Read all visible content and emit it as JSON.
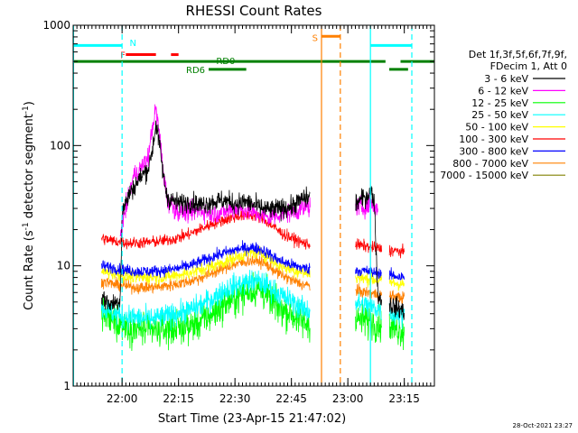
{
  "chart_data": {
    "type": "line",
    "title": "RHESSI Count Rates",
    "xlabel": "Start Time (23-Apr-15 21:47:02)",
    "ylabel_main": "Count Rate (s",
    "ylabel_sup1": "-1",
    "ylabel_mid": " detector segment",
    "ylabel_sup2": "-1",
    "ylabel_end": ")",
    "y_scale": "log",
    "ylim": [
      1,
      1000
    ],
    "y_ticks": [
      {
        "value": 1,
        "label": "1"
      },
      {
        "value": 10,
        "label": "10"
      },
      {
        "value": 100,
        "label": "100"
      },
      {
        "value": 1000,
        "label": "1000"
      }
    ],
    "xlim_minutes": [
      0,
      96
    ],
    "x_ticks": [
      {
        "minute": 13,
        "label": "22:00"
      },
      {
        "minute": 28,
        "label": "22:15"
      },
      {
        "minute": 43,
        "label": "22:30"
      },
      {
        "minute": 58,
        "label": "22:45"
      },
      {
        "minute": 73,
        "label": "23:00"
      },
      {
        "minute": 88,
        "label": "23:15"
      }
    ],
    "legend_header": [
      "Det 1f,3f,5f,6f,7f,9f,",
      "FDecim 1, Att 0"
    ],
    "legend_placement": "right",
    "timestamp": "28-Oct-2021 23:27",
    "gaps_minutes": [
      [
        63,
        75
      ],
      [
        82,
        84
      ]
    ],
    "data_window_minutes": [
      7.5,
      88
    ],
    "series": [
      {
        "name": "3 - 6 keV",
        "color": "#000000",
        "amp": 0.06,
        "points": [
          [
            7.5,
            5.5
          ],
          [
            10,
            4.8
          ],
          [
            12.5,
            5.2
          ],
          [
            13,
            28
          ],
          [
            15,
            40
          ],
          [
            18,
            55
          ],
          [
            20,
            65
          ],
          [
            21,
            90
          ],
          [
            22,
            150
          ],
          [
            23,
            100
          ],
          [
            24,
            55
          ],
          [
            25,
            37
          ],
          [
            28,
            33
          ],
          [
            31,
            34
          ],
          [
            34,
            32
          ],
          [
            37,
            34
          ],
          [
            40,
            35
          ],
          [
            43,
            33
          ],
          [
            46,
            34
          ],
          [
            49,
            31
          ],
          [
            52,
            29
          ],
          [
            55,
            30
          ],
          [
            58,
            31
          ],
          [
            61,
            36
          ],
          [
            63,
            37
          ],
          [
            75,
            33
          ],
          [
            78,
            38
          ],
          [
            79,
            42
          ],
          [
            80,
            36
          ],
          [
            81,
            5.5
          ],
          [
            84,
            4.8
          ],
          [
            88,
            4.2
          ]
        ]
      },
      {
        "name": "6 - 12 keV",
        "color": "#ff00ff",
        "amp": 0.06,
        "points": [
          [
            12.5,
            18
          ],
          [
            13,
            22
          ],
          [
            16,
            55
          ],
          [
            18,
            65
          ],
          [
            20,
            80
          ],
          [
            21,
            140
          ],
          [
            22,
            200
          ],
          [
            23,
            120
          ],
          [
            24,
            60
          ],
          [
            25,
            35
          ],
          [
            28,
            28
          ],
          [
            31,
            28
          ],
          [
            34,
            29
          ],
          [
            37,
            27
          ],
          [
            40,
            28
          ],
          [
            43,
            30
          ],
          [
            46,
            29
          ],
          [
            49,
            27
          ],
          [
            52,
            25
          ],
          [
            55,
            27
          ],
          [
            58,
            28
          ],
          [
            61,
            30
          ],
          [
            63,
            31
          ],
          [
            75,
            31
          ],
          [
            78,
            31
          ],
          [
            79,
            35
          ],
          [
            80,
            30
          ],
          [
            81,
            30
          ]
        ]
      },
      {
        "name": "12 - 25 keV",
        "color": "#00ff00",
        "amp": 0.1,
        "points": [
          [
            7.5,
            4.0
          ],
          [
            11,
            3.5
          ],
          [
            14,
            3.2
          ],
          [
            17,
            3.0
          ],
          [
            20,
            2.9
          ],
          [
            23,
            2.9
          ],
          [
            26,
            3.0
          ],
          [
            29,
            3.1
          ],
          [
            32,
            3.2
          ],
          [
            35,
            3.6
          ],
          [
            38,
            4.2
          ],
          [
            41,
            5.0
          ],
          [
            44,
            5.6
          ],
          [
            47,
            6.2
          ],
          [
            49,
            6.4
          ],
          [
            51,
            5.8
          ],
          [
            53,
            5.0
          ],
          [
            55,
            4.4
          ],
          [
            58,
            4.0
          ],
          [
            61,
            3.4
          ],
          [
            63,
            3.3
          ],
          [
            75,
            3.6
          ],
          [
            78,
            3.5
          ],
          [
            81,
            3.3
          ],
          [
            84,
            3.1
          ],
          [
            88,
            2.9
          ]
        ]
      },
      {
        "name": "25 - 50 keV",
        "color": "#00ffff",
        "amp": 0.07,
        "points": [
          [
            7.5,
            4.5
          ],
          [
            11,
            4.0
          ],
          [
            14,
            3.8
          ],
          [
            17,
            3.7
          ],
          [
            20,
            3.6
          ],
          [
            23,
            3.7
          ],
          [
            26,
            3.9
          ],
          [
            29,
            4.1
          ],
          [
            32,
            4.4
          ],
          [
            35,
            4.9
          ],
          [
            38,
            5.6
          ],
          [
            41,
            6.5
          ],
          [
            44,
            7.0
          ],
          [
            47,
            7.4
          ],
          [
            49,
            7.5
          ],
          [
            51,
            7.0
          ],
          [
            53,
            6.4
          ],
          [
            55,
            5.7
          ],
          [
            58,
            5.1
          ],
          [
            61,
            4.4
          ],
          [
            63,
            4.2
          ],
          [
            75,
            4.9
          ],
          [
            78,
            4.7
          ],
          [
            81,
            4.4
          ],
          [
            84,
            4.1
          ],
          [
            88,
            3.8
          ]
        ]
      },
      {
        "name": "50 - 100 keV",
        "color": "#ffff00",
        "amp": 0.04,
        "points": [
          [
            7.5,
            9.0
          ],
          [
            11,
            8.6
          ],
          [
            14,
            8.2
          ],
          [
            17,
            8.0
          ],
          [
            20,
            8.0
          ],
          [
            23,
            8.0
          ],
          [
            26,
            8.2
          ],
          [
            29,
            8.5
          ],
          [
            32,
            8.9
          ],
          [
            35,
            9.5
          ],
          [
            38,
            10.2
          ],
          [
            41,
            11.0
          ],
          [
            44,
            12.0
          ],
          [
            47,
            12.8
          ],
          [
            49,
            13.0
          ],
          [
            51,
            12.3
          ],
          [
            53,
            11.0
          ],
          [
            55,
            10.0
          ],
          [
            58,
            9.3
          ],
          [
            61,
            8.8
          ],
          [
            63,
            8.6
          ],
          [
            75,
            8.0
          ],
          [
            78,
            7.8
          ],
          [
            81,
            7.6
          ],
          [
            84,
            7.3
          ],
          [
            88,
            7.0
          ]
        ]
      },
      {
        "name": "100 - 300 keV",
        "color": "#ff0000",
        "amp": 0.035,
        "points": [
          [
            7.5,
            17
          ],
          [
            11,
            16
          ],
          [
            14,
            15.5
          ],
          [
            17,
            15.5
          ],
          [
            20,
            15.7
          ],
          [
            23,
            16
          ],
          [
            26,
            16.5
          ],
          [
            29,
            17.5
          ],
          [
            32,
            19
          ],
          [
            35,
            21
          ],
          [
            38,
            23
          ],
          [
            41,
            24.5
          ],
          [
            44,
            26
          ],
          [
            47,
            26.5
          ],
          [
            49,
            26
          ],
          [
            51,
            24
          ],
          [
            53,
            21.5
          ],
          [
            55,
            19
          ],
          [
            58,
            17
          ],
          [
            61,
            15.5
          ],
          [
            63,
            15
          ],
          [
            75,
            15
          ],
          [
            78,
            14.5
          ],
          [
            81,
            14
          ],
          [
            84,
            13.5
          ],
          [
            88,
            13
          ]
        ]
      },
      {
        "name": "300 - 800 keV",
        "color": "#0000ff",
        "amp": 0.035,
        "points": [
          [
            7.5,
            10
          ],
          [
            11,
            9.6
          ],
          [
            14,
            9.2
          ],
          [
            17,
            9.0
          ],
          [
            20,
            9.0
          ],
          [
            23,
            9.1
          ],
          [
            26,
            9.3
          ],
          [
            29,
            9.7
          ],
          [
            32,
            10.3
          ],
          [
            35,
            11.2
          ],
          [
            38,
            12.2
          ],
          [
            41,
            13.0
          ],
          [
            44,
            13.8
          ],
          [
            47,
            14.2
          ],
          [
            49,
            14.0
          ],
          [
            51,
            13.2
          ],
          [
            53,
            12.0
          ],
          [
            55,
            11.0
          ],
          [
            58,
            10.2
          ],
          [
            61,
            9.6
          ],
          [
            63,
            9.4
          ],
          [
            75,
            9.2
          ],
          [
            78,
            9.0
          ],
          [
            81,
            8.7
          ],
          [
            84,
            8.4
          ],
          [
            88,
            8.0
          ]
        ]
      },
      {
        "name": "800 - 7000 keV",
        "color": "#ff8000",
        "amp": 0.035,
        "points": [
          [
            7.5,
            7.5
          ],
          [
            11,
            7.0
          ],
          [
            14,
            6.8
          ],
          [
            17,
            6.6
          ],
          [
            20,
            6.6
          ],
          [
            23,
            6.7
          ],
          [
            26,
            6.9
          ],
          [
            29,
            7.2
          ],
          [
            32,
            7.6
          ],
          [
            35,
            8.2
          ],
          [
            38,
            9.0
          ],
          [
            41,
            9.8
          ],
          [
            44,
            10.5
          ],
          [
            47,
            11.0
          ],
          [
            49,
            11.0
          ],
          [
            51,
            10.4
          ],
          [
            53,
            9.4
          ],
          [
            55,
            8.5
          ],
          [
            58,
            7.6
          ],
          [
            61,
            7.0
          ],
          [
            63,
            6.8
          ],
          [
            75,
            6.2
          ],
          [
            78,
            6.0
          ],
          [
            81,
            5.8
          ],
          [
            84,
            5.6
          ],
          [
            88,
            5.4
          ]
        ]
      },
      {
        "name": "7000 - 15000 keV",
        "color": "#808000",
        "amp": 0.0,
        "points": []
      }
    ],
    "bars": [
      {
        "label": "N",
        "color": "#00ffff",
        "label_minute": 15,
        "label_value": 720,
        "segments": [
          [
            0,
            13
          ],
          [
            79,
            90
          ]
        ],
        "value": 680
      },
      {
        "label": "F",
        "color": "#ff0000",
        "label_minute": 12.5,
        "label_value": 570,
        "segments": [
          [
            14,
            22
          ],
          [
            26,
            28
          ]
        ],
        "value": 570
      },
      {
        "label": "RD0",
        "color": "#008000",
        "label_minute": 38,
        "label_value": 510,
        "segments": [
          [
            0,
            83
          ],
          [
            87,
            96
          ]
        ],
        "value": 500
      },
      {
        "label": "RD6",
        "color": "#008000",
        "label_minute": 30,
        "label_value": 430,
        "segments": [
          [
            36,
            46
          ],
          [
            84,
            89
          ]
        ],
        "value": 430
      },
      {
        "label": "S",
        "color": "#ff8000",
        "label_minute": 63.5,
        "label_value": 790,
        "segments": [
          [
            66,
            71
          ]
        ],
        "value": 810
      }
    ],
    "vlines": [
      {
        "minute": 0.1,
        "color": "#00ffff",
        "dash": false
      },
      {
        "minute": 13,
        "color": "#00ffff",
        "dash": true
      },
      {
        "minute": 66,
        "color": "#ff8000",
        "dash": false
      },
      {
        "minute": 71,
        "color": "#ff8000",
        "dash": true
      },
      {
        "minute": 79,
        "color": "#00ffff",
        "dash": false
      },
      {
        "minute": 90,
        "color": "#00ffff",
        "dash": true
      }
    ]
  }
}
